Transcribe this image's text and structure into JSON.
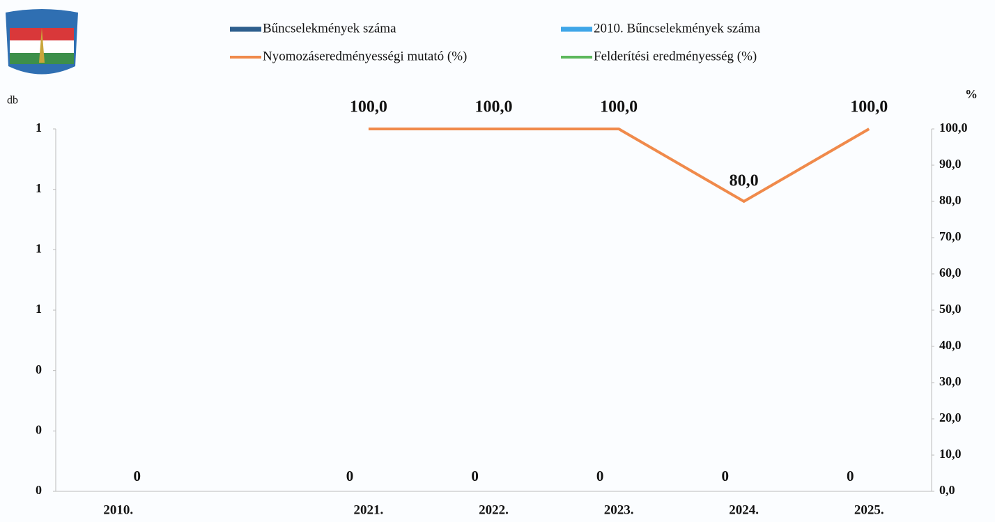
{
  "chart_data": {
    "type": "bar",
    "y_axis_label": "db",
    "y2_axis_label": "%",
    "categories": [
      "2010.",
      null,
      "2021.",
      "2022.",
      "2023.",
      "2024.",
      "2025."
    ],
    "series": [
      {
        "name": "Bűncselekmények száma",
        "color": "#2e5f8e",
        "type": "bar",
        "values": [
          null,
          null,
          0,
          0,
          0,
          0,
          0
        ]
      },
      {
        "name": "2010. Bűncselekmények száma",
        "color": "#3fa6e8",
        "type": "bar",
        "values": [
          0,
          null,
          null,
          null,
          null,
          null,
          null
        ]
      },
      {
        "name": "Nyomozáseredményességi mutató (%)",
        "color": "#f08a4b",
        "type": "line",
        "axis": "y2",
        "values": [
          null,
          null,
          100,
          100,
          100,
          80,
          100
        ],
        "value_labels": [
          null,
          null,
          "100,0",
          "100,0",
          "100,0",
          "80,0",
          "100,0"
        ]
      },
      {
        "name": "Felderítési eredményesség (%)",
        "color": "#5cb85c",
        "type": "line",
        "axis": "y2",
        "values": [
          null,
          null,
          null,
          null,
          null,
          null,
          null
        ]
      }
    ],
    "ylim": [
      0,
      1.2
    ],
    "yticks": [
      0,
      {
        "value": 0.2,
        "label": "0"
      },
      {
        "value": 0.4,
        "label": "0"
      },
      {
        "value": 0.6,
        "label": "1"
      },
      {
        "value": 0.8,
        "label": "1"
      },
      {
        "value": 1.0,
        "label": "1"
      },
      {
        "value": 1.2,
        "label": "1"
      }
    ],
    "y2lim": [
      0,
      100
    ],
    "y2ticks": [
      {
        "value": 0,
        "label": "0,0"
      },
      {
        "value": 10,
        "label": "10,0"
      },
      {
        "value": 20,
        "label": "20,0"
      },
      {
        "value": 30,
        "label": "30,0"
      },
      {
        "value": 40,
        "label": "40,0"
      },
      {
        "value": 50,
        "label": "50,0"
      },
      {
        "value": 60,
        "label": "60,0"
      },
      {
        "value": 70,
        "label": "70,0"
      },
      {
        "value": 80,
        "label": "80,0"
      },
      {
        "value": 90,
        "label": "90,0"
      },
      {
        "value": 100,
        "label": "100,0"
      }
    ]
  }
}
